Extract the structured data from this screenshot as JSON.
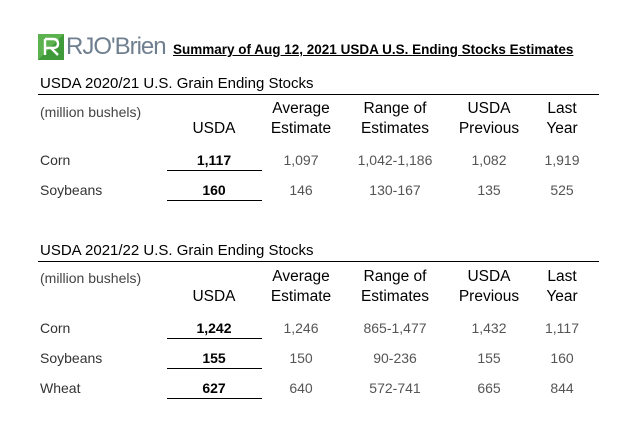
{
  "header": {
    "logo_text": "RJO'Brien",
    "title": "Summary of Aug 12, 2021 USDA U.S. Ending Stocks Estimates"
  },
  "sections": [
    {
      "title": "USDA 2020/21 U.S. Grain Ending Stocks",
      "units": "(million bushels)",
      "columns": {
        "usda": "USDA",
        "avg_1": "Average",
        "avg_2": "Estimate",
        "range_1": "Range of",
        "range_2": "Estimates",
        "prev_1": "USDA",
        "prev_2": "Previous",
        "last_1": "Last",
        "last_2": "Year"
      },
      "rows": [
        {
          "name": "Corn",
          "usda": "1,117",
          "avg": "1,097",
          "range": "1,042-1,186",
          "prev": "1,082",
          "last": "1,919"
        },
        {
          "name": "Soybeans",
          "usda": "160",
          "avg": "146",
          "range": "130-167",
          "prev": "135",
          "last": "525"
        }
      ]
    },
    {
      "title": "USDA 2021/22 U.S. Grain Ending Stocks",
      "units": "(million bushels)",
      "columns": {
        "usda": "USDA",
        "avg_1": "Average",
        "avg_2": "Estimate",
        "range_1": "Range of",
        "range_2": "Estimates",
        "prev_1": "USDA",
        "prev_2": "Previous",
        "last_1": "Last",
        "last_2": "Year"
      },
      "rows": [
        {
          "name": "Corn",
          "usda": "1,242",
          "avg": "1,246",
          "range": "865-1,477",
          "prev": "1,432",
          "last": "1,117"
        },
        {
          "name": "Soybeans",
          "usda": "155",
          "avg": "150",
          "range": "90-236",
          "prev": "155",
          "last": "160"
        },
        {
          "name": "Wheat",
          "usda": "627",
          "avg": "640",
          "range": "572-741",
          "prev": "665",
          "last": "844"
        }
      ]
    }
  ],
  "colors": {
    "logo_green": "#3f9a3a",
    "logo_gray": "#6f7f8f"
  }
}
